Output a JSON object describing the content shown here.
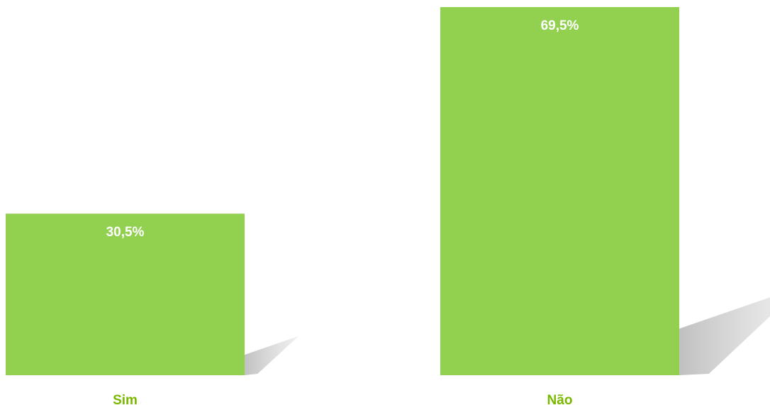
{
  "chart_data": {
    "type": "bar",
    "categories": [
      "Sim",
      "Não"
    ],
    "values": [
      30.5,
      69.5
    ],
    "value_labels": [
      "30,5%",
      "69,5%"
    ],
    "unit": "%",
    "title": "",
    "xlabel": "",
    "ylabel": "",
    "ylim": [
      0,
      69.5
    ],
    "grid": false,
    "legend": "none",
    "bar_color": "#92d050",
    "label_color": "#ffffff",
    "category_label_color": "#7ab800",
    "shadow_color": "#c8c8c8"
  }
}
